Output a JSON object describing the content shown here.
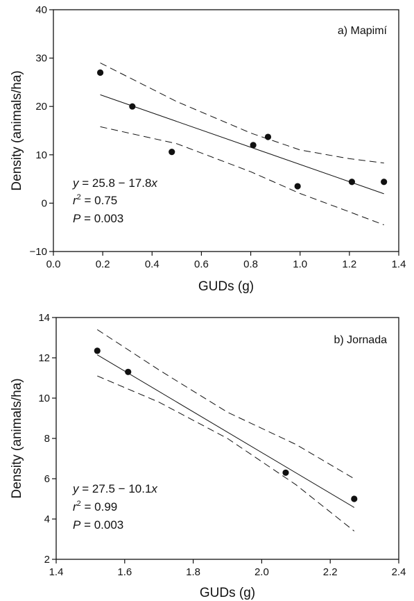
{
  "chart_data": [
    {
      "type": "scatter",
      "panel_label": "a) Mapimí",
      "xlabel": "GUDs (g)",
      "ylabel": "Density (animals/ha)",
      "xlim": [
        0.0,
        1.4
      ],
      "ylim": [
        -10,
        40
      ],
      "x_ticks": [
        "0.0",
        "0.2",
        "0.4",
        "0.6",
        "0.8",
        "1.0",
        "1.2",
        "1.4"
      ],
      "y_ticks": [
        "−10",
        "0",
        "10",
        "20",
        "30",
        "40"
      ],
      "points": [
        {
          "x": 0.19,
          "y": 27.0
        },
        {
          "x": 0.32,
          "y": 20.0
        },
        {
          "x": 0.48,
          "y": 10.6
        },
        {
          "x": 0.81,
          "y": 12.0
        },
        {
          "x": 0.87,
          "y": 13.7
        },
        {
          "x": 0.99,
          "y": 3.5
        },
        {
          "x": 1.21,
          "y": 4.4
        },
        {
          "x": 1.34,
          "y": 4.4
        }
      ],
      "fit": {
        "intercept": 25.8,
        "slope": -17.8,
        "x_range": [
          0.19,
          1.34
        ]
      },
      "ci_upper": [
        {
          "x": 0.19,
          "y": 29.0
        },
        {
          "x": 0.5,
          "y": 21.0
        },
        {
          "x": 0.8,
          "y": 14.5
        },
        {
          "x": 1.0,
          "y": 11.0
        },
        {
          "x": 1.2,
          "y": 9.2
        },
        {
          "x": 1.34,
          "y": 8.3
        }
      ],
      "ci_lower": [
        {
          "x": 0.19,
          "y": 15.8
        },
        {
          "x": 0.5,
          "y": 12.3
        },
        {
          "x": 0.8,
          "y": 6.5
        },
        {
          "x": 1.0,
          "y": 2.0
        },
        {
          "x": 1.2,
          "y": -1.8
        },
        {
          "x": 1.34,
          "y": -4.5
        }
      ],
      "equation": {
        "y_var": "y",
        "y_rhs": " = 25.8 − 17.8",
        "x_var": "x",
        "r_var": "r",
        "r_sup": "2",
        "r_rhs": " = 0.75",
        "p_var": "P",
        "p_rhs": " = 0.003"
      }
    },
    {
      "type": "scatter",
      "panel_label": "b) Jornada",
      "xlabel": "GUDs (g)",
      "ylabel": "Density (animals/ha)",
      "xlim": [
        1.4,
        2.4
      ],
      "ylim": [
        2,
        14
      ],
      "x_ticks": [
        "1.4",
        "1.6",
        "1.8",
        "2.0",
        "2.2",
        "2.4"
      ],
      "y_ticks": [
        "2",
        "4",
        "6",
        "8",
        "10",
        "12",
        "14"
      ],
      "points": [
        {
          "x": 1.52,
          "y": 12.35
        },
        {
          "x": 1.61,
          "y": 11.3
        },
        {
          "x": 2.07,
          "y": 6.3
        },
        {
          "x": 2.27,
          "y": 5.0
        }
      ],
      "fit": {
        "intercept": 27.5,
        "slope": -10.1,
        "x_range": [
          1.52,
          2.27
        ]
      },
      "ci_upper": [
        {
          "x": 1.52,
          "y": 13.4
        },
        {
          "x": 1.7,
          "y": 11.4
        },
        {
          "x": 1.9,
          "y": 9.3
        },
        {
          "x": 2.1,
          "y": 7.7
        },
        {
          "x": 2.27,
          "y": 6.0
        }
      ],
      "ci_lower": [
        {
          "x": 1.52,
          "y": 11.1
        },
        {
          "x": 1.7,
          "y": 9.8
        },
        {
          "x": 1.9,
          "y": 8.0
        },
        {
          "x": 2.1,
          "y": 5.7
        },
        {
          "x": 2.27,
          "y": 3.4
        }
      ],
      "equation": {
        "y_var": "y",
        "y_rhs": " = 27.5 − 10.1",
        "x_var": "x",
        "r_var": "r",
        "r_sup": "2",
        "r_rhs": " = 0.99",
        "p_var": "P",
        "p_rhs": " = 0.003"
      }
    }
  ]
}
